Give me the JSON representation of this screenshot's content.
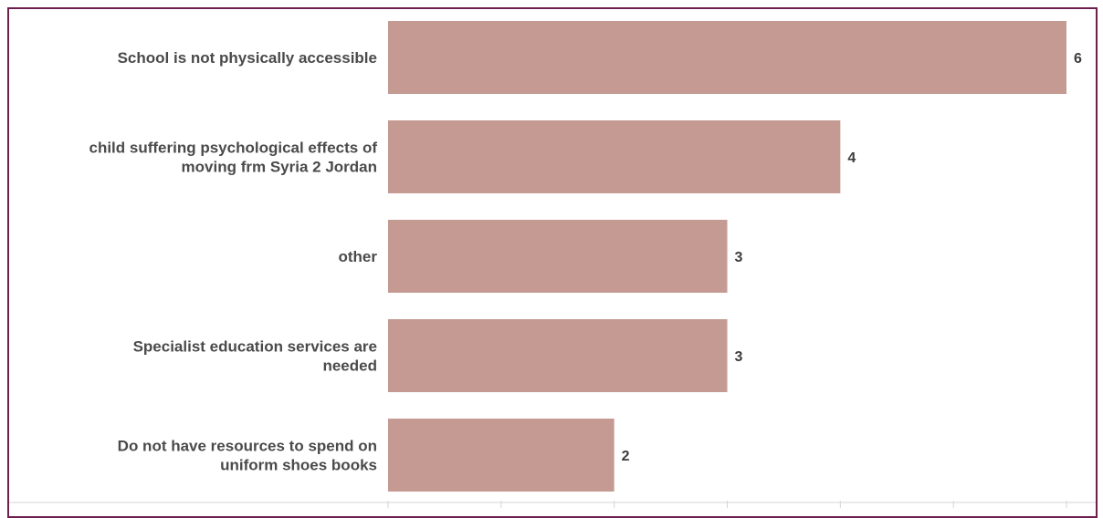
{
  "chart_data": {
    "type": "bar",
    "orientation": "horizontal",
    "categories": [
      [
        "School is not physically accessible"
      ],
      [
        "child suffering psychological effects of",
        "moving frm  Syria 2 Jordan"
      ],
      [
        "other"
      ],
      [
        "Specialist education services are",
        "needed"
      ],
      [
        "Do not have resources to spend on",
        "uniform shoes books"
      ]
    ],
    "values": [
      6,
      4,
      3,
      3,
      2
    ],
    "data_labels": [
      "6",
      "4",
      "3",
      "3",
      "2"
    ],
    "xlim": [
      0,
      6
    ],
    "grid": false,
    "legend": "none",
    "bar_color": "#c49a92",
    "text_color": "#4a4a4a",
    "frame_color": "#6e1f4e"
  }
}
